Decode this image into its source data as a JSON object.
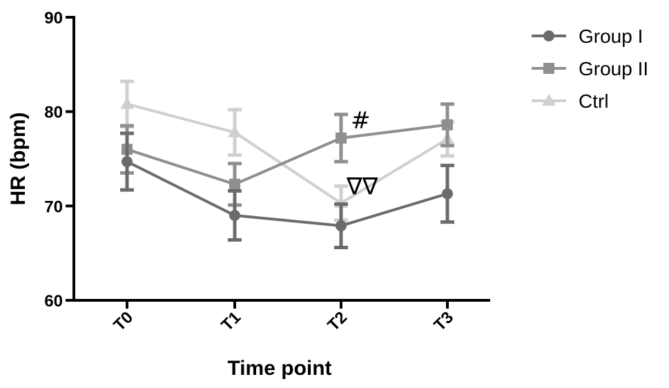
{
  "chart_data": {
    "type": "line",
    "title": "",
    "xlabel": "Time point",
    "ylabel": "HR (bpm)",
    "categories": [
      "T0",
      "T1",
      "T2",
      "T3"
    ],
    "ylim": [
      60,
      90
    ],
    "yticks": [
      60,
      70,
      80,
      90
    ],
    "grid": false,
    "legend_position": "top-right",
    "series": [
      {
        "name": "Group I",
        "marker": "circle",
        "color": "#6b6b6b",
        "values": [
          74.7,
          69.0,
          67.9,
          71.3
        ],
        "errors": [
          3.0,
          2.6,
          2.3,
          3.0
        ]
      },
      {
        "name": "Group II",
        "marker": "square",
        "color": "#8f8f8f",
        "values": [
          76.0,
          72.3,
          77.2,
          78.6
        ],
        "errors": [
          2.5,
          2.2,
          2.5,
          2.2
        ]
      },
      {
        "name": "Ctrl",
        "marker": "triangle",
        "color": "#cfcfcf",
        "values": [
          80.8,
          77.8,
          70.3,
          77.1
        ],
        "errors": [
          2.4,
          2.4,
          1.8,
          1.8
        ]
      }
    ],
    "annotations": [
      {
        "text": "#",
        "category": "T2",
        "series": "Group II"
      },
      {
        "text": "∇∇",
        "category": "T2",
        "series": "Ctrl"
      }
    ]
  }
}
